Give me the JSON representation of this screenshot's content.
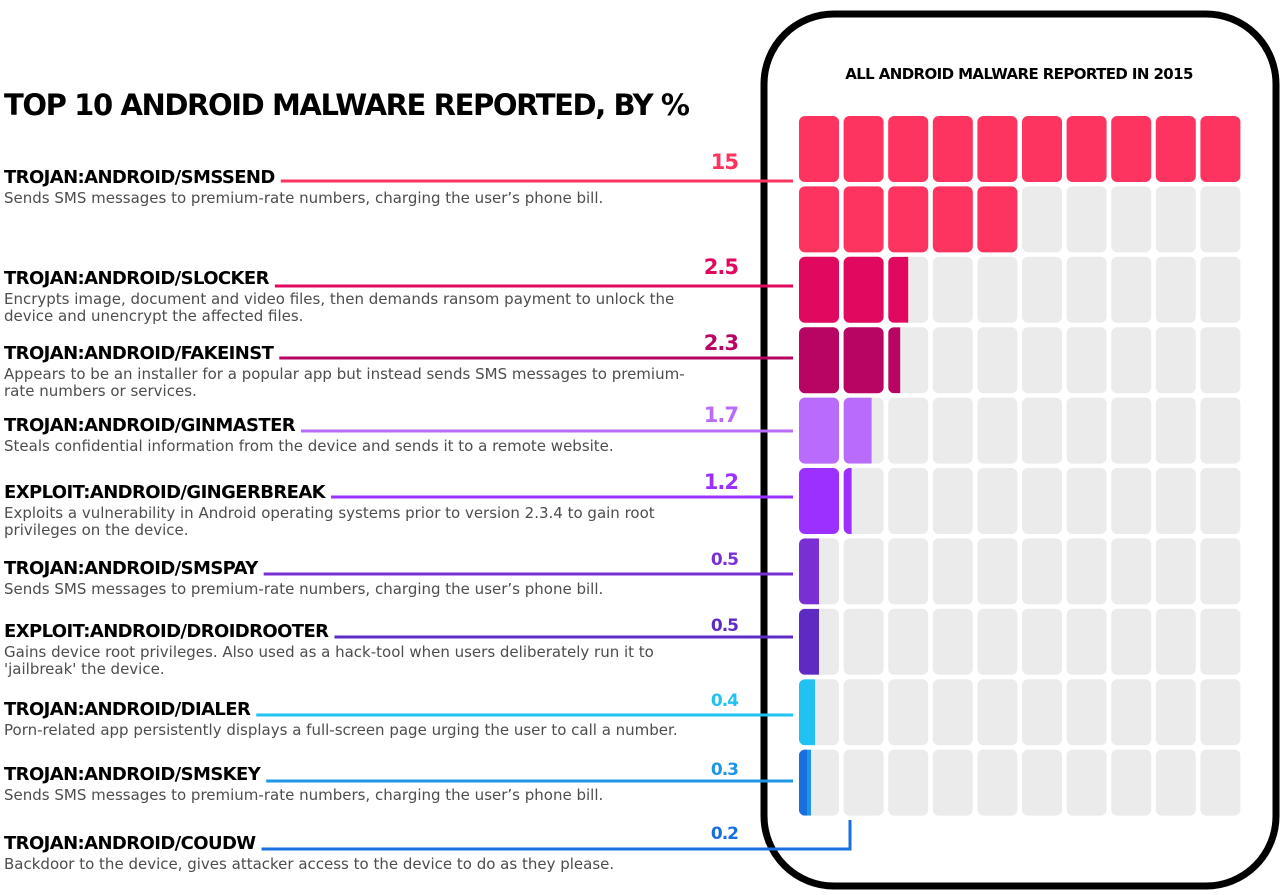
{
  "header": {
    "title": "TOP 10 ANDROID MALWARE REPORTED, BY  %"
  },
  "panel": {
    "title": "ALL ANDROID MALWARE REPORTED IN 2015"
  },
  "chart_data": {
    "type": "waffle",
    "title": "TOP 10 ANDROID MALWARE REPORTED, BY  %",
    "subtitle": "ALL ANDROID MALWARE REPORTED IN 2015",
    "grid": {
      "rows": 10,
      "cols": 10,
      "cell_value": 1
    },
    "empty_color": "#ebebeb",
    "series": [
      {
        "name": "TROJAN:ANDROID/SMSSEND",
        "value": 15,
        "label": "15",
        "color": "#fd3460",
        "description": "Sends SMS messages to premium-rate numbers, charging the user’s phone bill."
      },
      {
        "name": "TROJAN:ANDROID/SLOCKER",
        "value": 2.5,
        "label": "2.5",
        "color": "#e0085f",
        "description": "Encrypts image, document and video files, then demands ransom payment to unlock the device and unencrypt the affected files."
      },
      {
        "name": "TROJAN:ANDROID/FAKEINST",
        "value": 2.3,
        "label": "2.3",
        "color": "#b80563",
        "description": "Appears to be an installer for a popular app but instead sends SMS messages to premium-rate numbers or services."
      },
      {
        "name": "TROJAN:ANDROID/GINMASTER",
        "value": 1.7,
        "label": "1.7",
        "color": "#b96cfb",
        "description": "Steals confidential information from the device and sends it to a remote website."
      },
      {
        "name": "EXPLOIT:ANDROID/GINGERBREAK",
        "value": 1.2,
        "label": "1.2",
        "color": "#9b30ff",
        "description": "Exploits a vulnerability in Android operating systems prior to version 2.3.4 to gain root privileges on the device."
      },
      {
        "name": "TROJAN:ANDROID/SMSPAY",
        "value": 0.5,
        "label": "0.5",
        "color": "#7a2fd4",
        "description": "Sends SMS messages to premium-rate numbers, charging the user’s phone bill."
      },
      {
        "name": "EXPLOIT:ANDROID/DROIDROOTER",
        "value": 0.5,
        "label": "0.5",
        "color": "#5e2ac4",
        "description": "Gains device root privileges. Also used as a hack-tool when users deliberately run it to 'jailbreak' the device."
      },
      {
        "name": "TROJAN:ANDROID/DIALER",
        "value": 0.4,
        "label": "0.4",
        "color": "#21c2f2",
        "description": "Porn-related app persistently displays a full-screen page urging the user to call a number."
      },
      {
        "name": "TROJAN:ANDROID/SMSKEY",
        "value": 0.3,
        "label": "0.3",
        "color": "#1f95e8",
        "description": "Sends SMS messages to premium-rate numbers, charging the user’s phone bill."
      },
      {
        "name": "TROJAN:ANDROID/COUDW",
        "value": 0.2,
        "label": "0.2",
        "color": "#1a6fe0",
        "description": "Backdoor to the device, gives attacker access to the device to do as they please."
      }
    ]
  }
}
